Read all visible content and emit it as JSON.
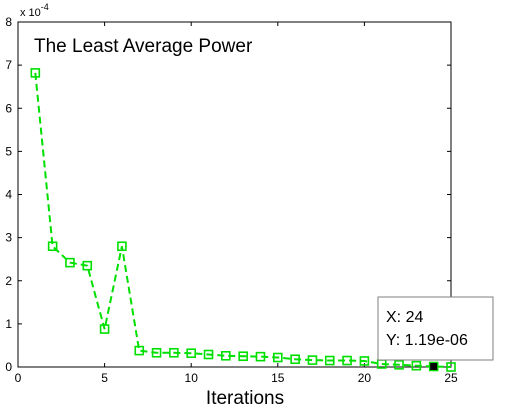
{
  "chart_data": {
    "type": "line",
    "title": "The Least Average Power",
    "xlabel": "Iterations",
    "ylabel": "",
    "y_exponent_label": {
      "base": "x 10",
      "power": "-4"
    },
    "xlim": [
      0,
      25
    ],
    "ylim": [
      0,
      8
    ],
    "xticks": [
      "0",
      "5",
      "10",
      "15",
      "20",
      "25"
    ],
    "yticks": [
      "0",
      "1",
      "2",
      "3",
      "4",
      "5",
      "6",
      "7",
      "8"
    ],
    "grid": false,
    "series": [
      {
        "color": "#00e000",
        "line_style": "dashed",
        "marker": "square",
        "x": [
          1,
          2,
          3,
          4,
          5,
          6,
          7,
          8,
          9,
          10,
          11,
          12,
          13,
          14,
          15,
          16,
          17,
          18,
          19,
          20,
          21,
          22,
          23,
          24,
          25
        ],
        "y": [
          6.82,
          2.8,
          2.42,
          2.35,
          0.88,
          2.8,
          0.38,
          0.33,
          0.33,
          0.32,
          0.29,
          0.26,
          0.25,
          0.24,
          0.22,
          0.18,
          0.16,
          0.15,
          0.15,
          0.14,
          0.07,
          0.05,
          0.03,
          0.0119,
          0.0
        ]
      }
    ],
    "datatip": {
      "x_label": "X: 24",
      "y_label": "Y: 1.19e-06",
      "x": 24,
      "y": 0.0119
    }
  }
}
